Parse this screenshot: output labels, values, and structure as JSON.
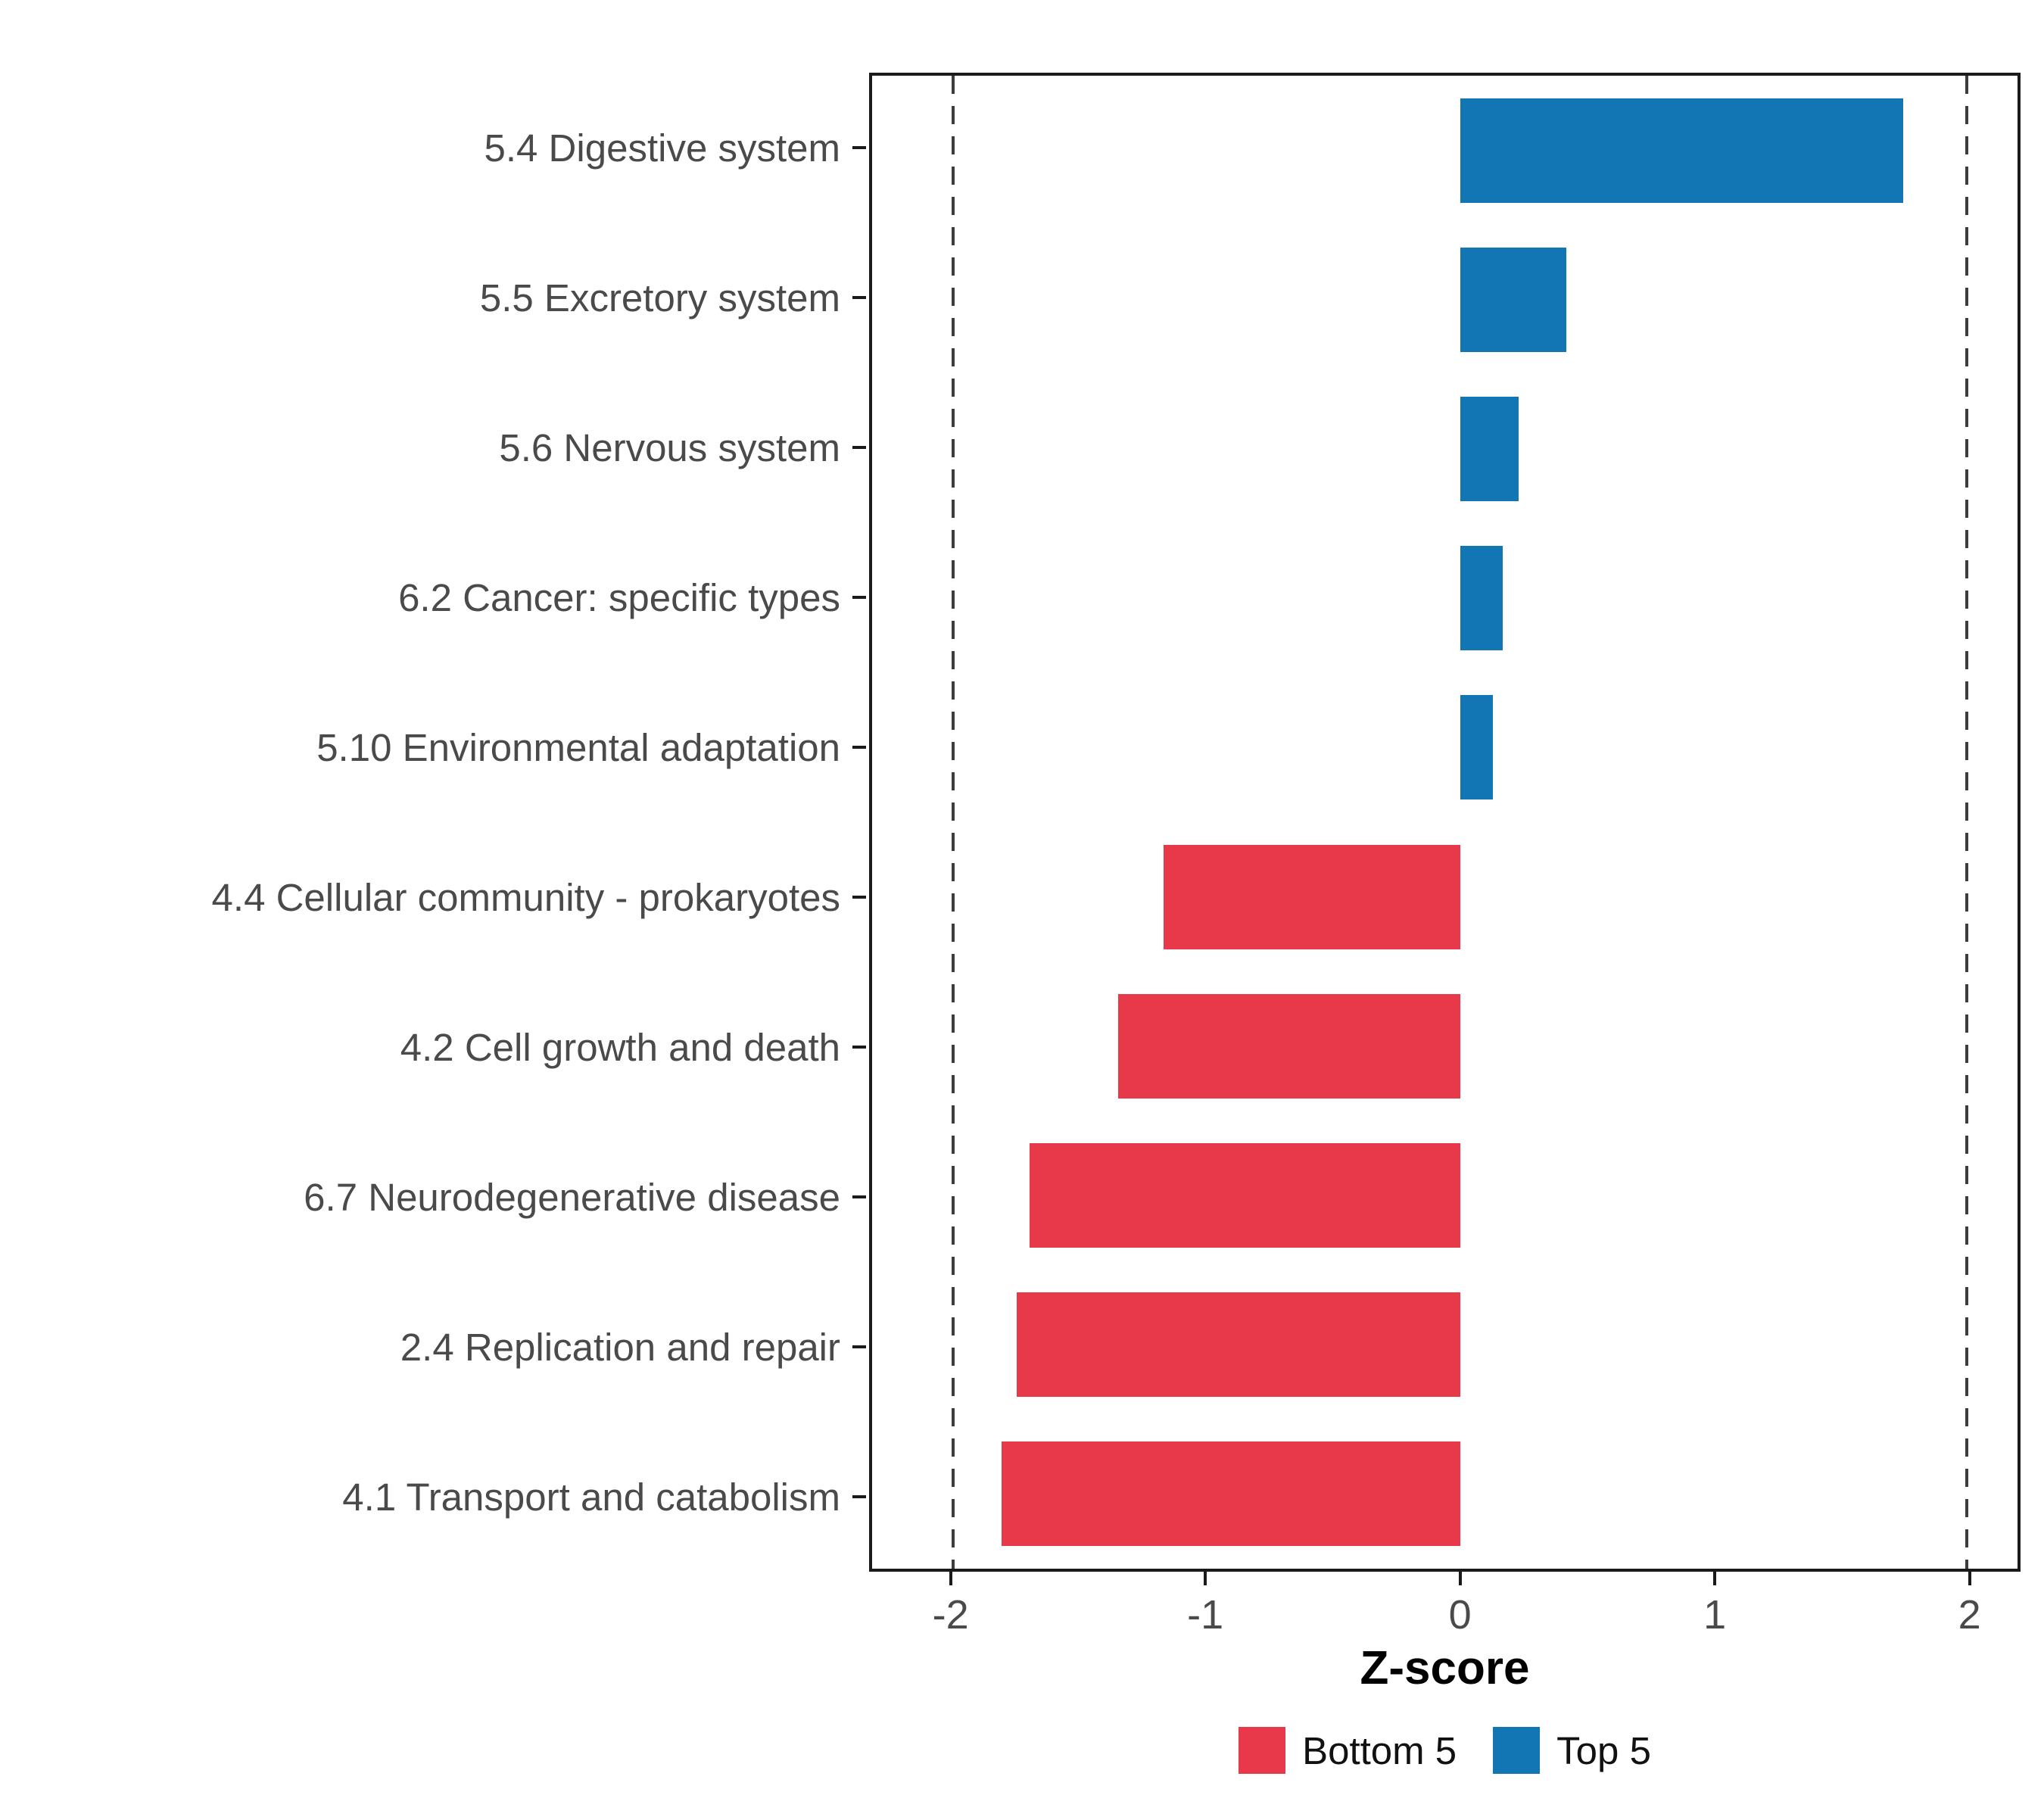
{
  "chart_data": {
    "type": "bar",
    "orientation": "horizontal",
    "title": "",
    "xlabel": "Z-score",
    "categories": [
      "5.4 Digestive system",
      "5.5 Excretory system",
      "5.6 Nervous system",
      "6.2 Cancer: specific types",
      "5.10 Environmental adaptation",
      "4.4 Cellular community - prokaryotes",
      "4.2 Cell growth and death",
      "6.7 Neurodegenerative disease",
      "2.4 Replication and repair",
      "4.1 Transport and catabolism"
    ],
    "values": [
      1.75,
      0.42,
      0.23,
      0.17,
      0.13,
      -1.17,
      -1.35,
      -1.7,
      -1.75,
      -1.81
    ],
    "groups": [
      "Top 5",
      "Top 5",
      "Top 5",
      "Top 5",
      "Top 5",
      "Bottom 5",
      "Bottom 5",
      "Bottom 5",
      "Bottom 5",
      "Bottom 5"
    ],
    "colors": {
      "Bottom 5": "#E8394A",
      "Top 5": "#1276B5"
    },
    "x_ticks": [
      -2,
      -1,
      0,
      1,
      2
    ],
    "x_tick_labels": [
      "-2",
      "-1",
      "0",
      "1",
      "2"
    ],
    "x_domain": [
      -2.32,
      2.2
    ],
    "reference_lines": [
      -2,
      2
    ],
    "grid": false,
    "legend_position": "bottom",
    "legend": [
      {
        "label": "Bottom 5",
        "group": "Bottom 5"
      },
      {
        "label": "Top 5",
        "group": "Top 5"
      }
    ]
  }
}
